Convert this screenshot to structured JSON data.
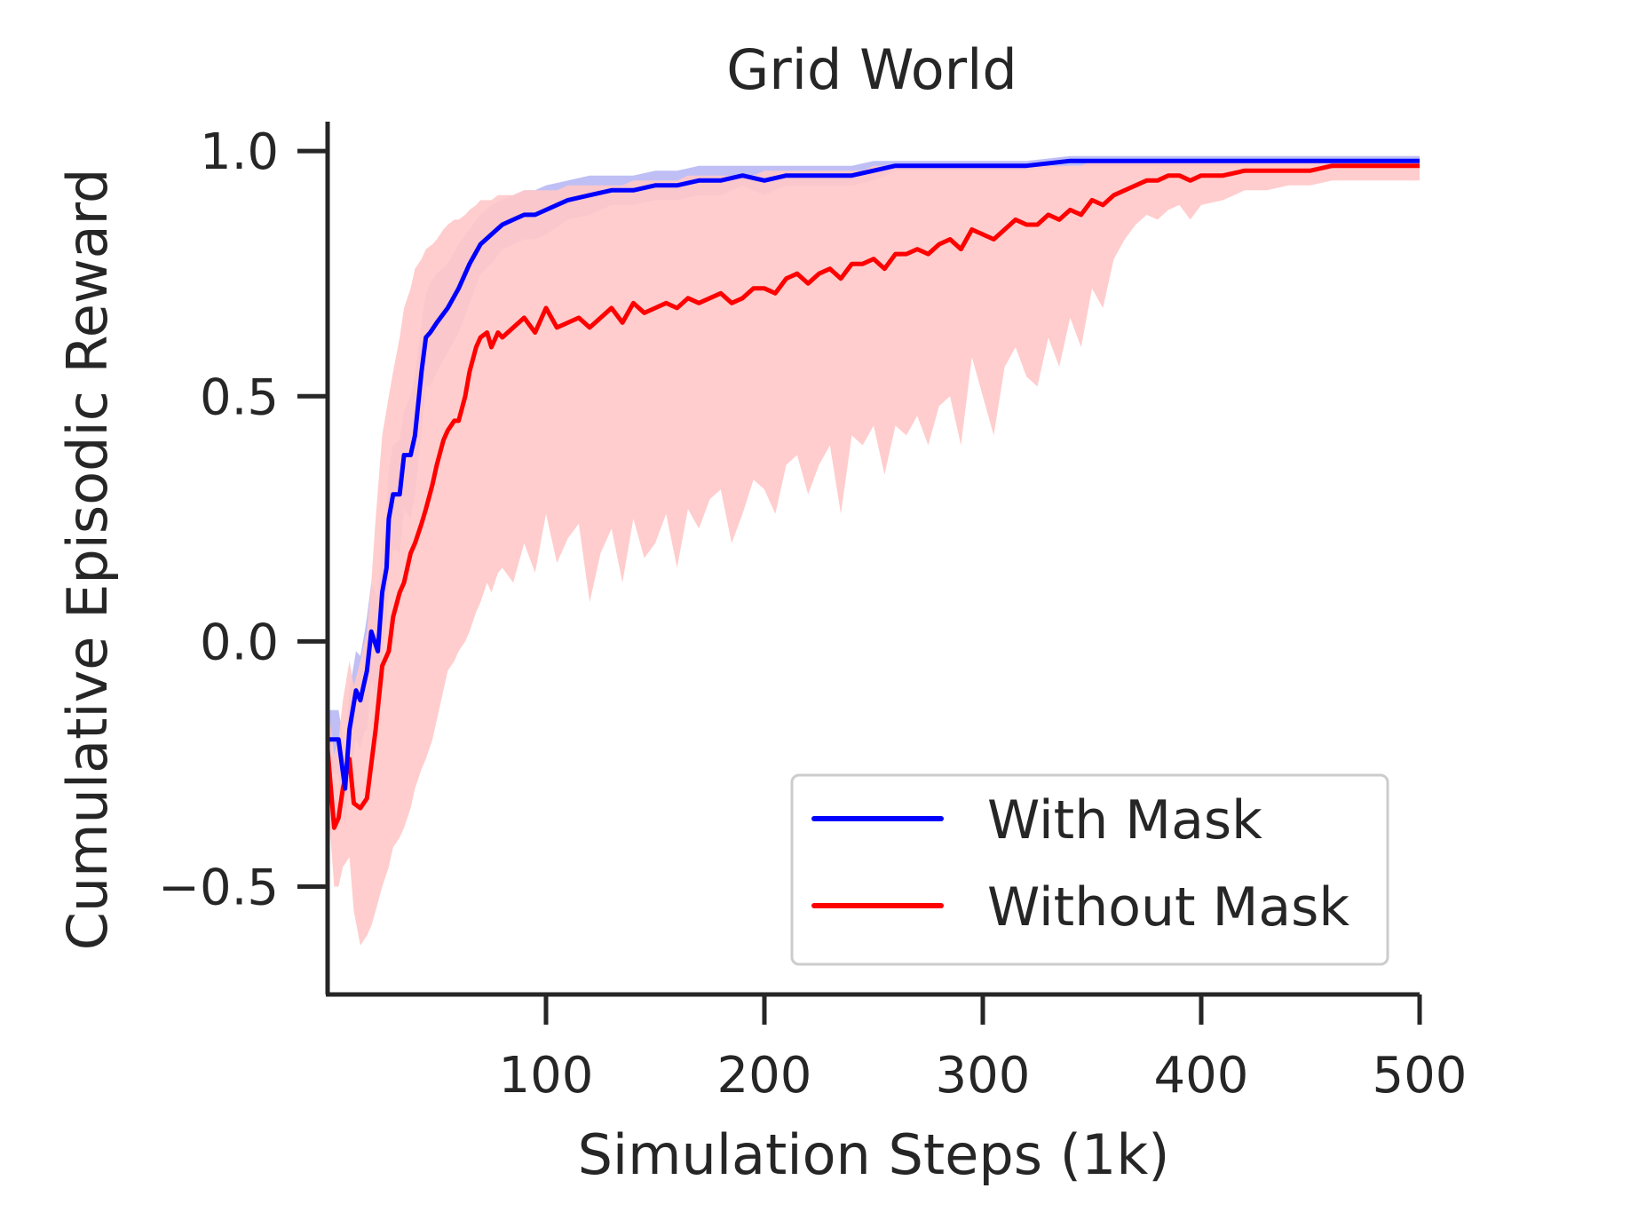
{
  "chart_data": {
    "type": "line",
    "title": "Grid World",
    "xlabel": "Simulation Steps (1k)",
    "ylabel": "Cumulative Episodic Reward",
    "xlim": [
      0,
      500
    ],
    "ylim": [
      -0.72,
      1.06
    ],
    "xticks": [
      100,
      200,
      300,
      400,
      500
    ],
    "xtick_labels": [
      "100",
      "200",
      "300",
      "400",
      "500"
    ],
    "yticks": [
      -0.5,
      0.0,
      0.5,
      1.0
    ],
    "ytick_labels": [
      "−0.5",
      "0.0",
      "0.5",
      "1.0"
    ],
    "legend_position": "lower-right",
    "series": [
      {
        "name": "With Mask",
        "color": "#0000ff",
        "band_color": "#aaaaf2",
        "x": [
          0,
          5,
          8,
          10,
          13,
          15,
          17,
          18,
          20,
          23,
          25,
          27,
          28,
          30,
          33,
          35,
          38,
          40,
          43,
          45,
          47,
          50,
          55,
          60,
          65,
          70,
          75,
          80,
          85,
          90,
          95,
          100,
          110,
          120,
          130,
          140,
          150,
          160,
          170,
          180,
          190,
          200,
          210,
          220,
          230,
          240,
          250,
          260,
          280,
          300,
          320,
          340,
          360,
          380,
          400,
          420,
          440,
          460,
          480,
          500
        ],
        "y": [
          -0.2,
          -0.2,
          -0.3,
          -0.18,
          -0.1,
          -0.12,
          -0.08,
          -0.06,
          0.02,
          -0.02,
          0.1,
          0.15,
          0.25,
          0.3,
          0.3,
          0.38,
          0.38,
          0.42,
          0.55,
          0.62,
          0.63,
          0.65,
          0.68,
          0.72,
          0.77,
          0.81,
          0.83,
          0.85,
          0.86,
          0.87,
          0.87,
          0.88,
          0.9,
          0.91,
          0.92,
          0.92,
          0.93,
          0.93,
          0.94,
          0.94,
          0.95,
          0.94,
          0.95,
          0.95,
          0.95,
          0.95,
          0.96,
          0.97,
          0.97,
          0.97,
          0.97,
          0.98,
          0.98,
          0.98,
          0.98,
          0.98,
          0.98,
          0.98,
          0.98,
          0.98
        ],
        "upper": [
          -0.14,
          -0.14,
          -0.22,
          -0.1,
          -0.02,
          -0.03,
          0.02,
          0.05,
          0.12,
          0.09,
          0.2,
          0.26,
          0.35,
          0.4,
          0.41,
          0.47,
          0.5,
          0.54,
          0.65,
          0.71,
          0.73,
          0.75,
          0.77,
          0.81,
          0.84,
          0.87,
          0.89,
          0.9,
          0.91,
          0.92,
          0.92,
          0.93,
          0.94,
          0.95,
          0.95,
          0.95,
          0.96,
          0.96,
          0.97,
          0.97,
          0.97,
          0.97,
          0.97,
          0.97,
          0.97,
          0.97,
          0.98,
          0.98,
          0.98,
          0.98,
          0.98,
          0.99,
          0.99,
          0.99,
          0.99,
          0.99,
          0.99,
          0.99,
          0.99,
          0.99
        ],
        "lower": [
          -0.27,
          -0.27,
          -0.38,
          -0.28,
          -0.2,
          -0.22,
          -0.18,
          -0.18,
          -0.08,
          -0.12,
          -0.02,
          0.04,
          0.13,
          0.19,
          0.18,
          0.27,
          0.25,
          0.3,
          0.43,
          0.52,
          0.52,
          0.55,
          0.59,
          0.63,
          0.69,
          0.75,
          0.77,
          0.8,
          0.81,
          0.82,
          0.82,
          0.83,
          0.86,
          0.87,
          0.89,
          0.89,
          0.9,
          0.9,
          0.91,
          0.91,
          0.93,
          0.91,
          0.93,
          0.93,
          0.93,
          0.93,
          0.94,
          0.96,
          0.96,
          0.96,
          0.96,
          0.97,
          0.97,
          0.97,
          0.97,
          0.97,
          0.97,
          0.97,
          0.97,
          0.97
        ]
      },
      {
        "name": "Without Mask",
        "color": "#ff0000",
        "band_color": "#ffc8c8",
        "x": [
          0,
          3,
          5,
          7,
          10,
          12,
          15,
          18,
          20,
          22,
          25,
          28,
          30,
          33,
          35,
          38,
          40,
          43,
          45,
          48,
          50,
          53,
          55,
          58,
          60,
          63,
          65,
          68,
          70,
          73,
          75,
          78,
          80,
          85,
          90,
          95,
          100,
          105,
          110,
          115,
          120,
          125,
          130,
          135,
          140,
          145,
          150,
          155,
          160,
          165,
          170,
          175,
          180,
          185,
          190,
          195,
          200,
          205,
          210,
          215,
          220,
          225,
          230,
          235,
          240,
          245,
          250,
          255,
          260,
          265,
          270,
          275,
          280,
          285,
          290,
          295,
          300,
          305,
          310,
          315,
          320,
          325,
          330,
          335,
          340,
          345,
          350,
          355,
          360,
          365,
          370,
          375,
          380,
          385,
          390,
          395,
          400,
          410,
          420,
          430,
          440,
          450,
          460,
          470,
          480,
          490,
          500
        ],
        "y": [
          -0.22,
          -0.38,
          -0.36,
          -0.3,
          -0.24,
          -0.33,
          -0.34,
          -0.32,
          -0.25,
          -0.18,
          -0.05,
          -0.02,
          0.05,
          0.1,
          0.12,
          0.18,
          0.2,
          0.24,
          0.27,
          0.32,
          0.36,
          0.41,
          0.43,
          0.45,
          0.45,
          0.5,
          0.55,
          0.6,
          0.62,
          0.63,
          0.6,
          0.63,
          0.62,
          0.64,
          0.66,
          0.63,
          0.68,
          0.64,
          0.65,
          0.66,
          0.64,
          0.66,
          0.68,
          0.65,
          0.69,
          0.67,
          0.68,
          0.69,
          0.68,
          0.7,
          0.69,
          0.7,
          0.71,
          0.69,
          0.7,
          0.72,
          0.72,
          0.71,
          0.74,
          0.75,
          0.73,
          0.75,
          0.76,
          0.74,
          0.77,
          0.77,
          0.78,
          0.76,
          0.79,
          0.79,
          0.8,
          0.79,
          0.81,
          0.82,
          0.8,
          0.84,
          0.83,
          0.82,
          0.84,
          0.86,
          0.85,
          0.85,
          0.87,
          0.86,
          0.88,
          0.87,
          0.9,
          0.89,
          0.91,
          0.92,
          0.93,
          0.94,
          0.94,
          0.95,
          0.95,
          0.94,
          0.95,
          0.95,
          0.96,
          0.96,
          0.96,
          0.96,
          0.97,
          0.97,
          0.97,
          0.97,
          0.97
        ],
        "upper": [
          -0.12,
          -0.23,
          -0.2,
          -0.12,
          -0.04,
          -0.09,
          -0.04,
          0.02,
          0.12,
          0.25,
          0.42,
          0.5,
          0.55,
          0.62,
          0.68,
          0.72,
          0.76,
          0.78,
          0.8,
          0.81,
          0.82,
          0.84,
          0.85,
          0.86,
          0.86,
          0.87,
          0.88,
          0.89,
          0.9,
          0.9,
          0.9,
          0.91,
          0.91,
          0.91,
          0.92,
          0.92,
          0.92,
          0.92,
          0.93,
          0.93,
          0.93,
          0.93,
          0.93,
          0.93,
          0.94,
          0.94,
          0.94,
          0.94,
          0.94,
          0.95,
          0.95,
          0.95,
          0.95,
          0.95,
          0.95,
          0.95,
          0.96,
          0.96,
          0.96,
          0.96,
          0.96,
          0.96,
          0.96,
          0.96,
          0.96,
          0.96,
          0.97,
          0.97,
          0.97,
          0.97,
          0.97,
          0.97,
          0.97,
          0.97,
          0.97,
          0.97,
          0.97,
          0.97,
          0.97,
          0.97,
          0.97,
          0.97,
          0.97,
          0.97,
          0.97,
          0.97,
          0.98,
          0.98,
          0.98,
          0.98,
          0.98,
          0.98,
          0.98,
          0.98,
          0.98,
          0.98,
          0.98,
          0.98,
          0.98,
          0.98,
          0.98,
          0.98,
          0.98,
          0.98,
          0.98,
          0.98,
          0.98
        ],
        "lower": [
          -0.32,
          -0.5,
          -0.5,
          -0.46,
          -0.44,
          -0.55,
          -0.62,
          -0.6,
          -0.58,
          -0.55,
          -0.5,
          -0.46,
          -0.42,
          -0.4,
          -0.38,
          -0.34,
          -0.3,
          -0.26,
          -0.24,
          -0.2,
          -0.16,
          -0.1,
          -0.06,
          -0.04,
          -0.02,
          0.0,
          0.02,
          0.06,
          0.08,
          0.12,
          0.1,
          0.14,
          0.15,
          0.12,
          0.2,
          0.14,
          0.26,
          0.16,
          0.21,
          0.24,
          0.08,
          0.18,
          0.23,
          0.12,
          0.25,
          0.17,
          0.2,
          0.26,
          0.15,
          0.27,
          0.23,
          0.29,
          0.31,
          0.2,
          0.26,
          0.33,
          0.31,
          0.26,
          0.36,
          0.38,
          0.3,
          0.36,
          0.4,
          0.26,
          0.42,
          0.4,
          0.44,
          0.34,
          0.44,
          0.42,
          0.46,
          0.4,
          0.48,
          0.5,
          0.4,
          0.58,
          0.5,
          0.42,
          0.56,
          0.6,
          0.54,
          0.52,
          0.62,
          0.56,
          0.66,
          0.6,
          0.72,
          0.68,
          0.78,
          0.82,
          0.85,
          0.87,
          0.86,
          0.88,
          0.89,
          0.86,
          0.89,
          0.9,
          0.92,
          0.92,
          0.93,
          0.93,
          0.94,
          0.94,
          0.94,
          0.94,
          0.94
        ]
      }
    ]
  }
}
